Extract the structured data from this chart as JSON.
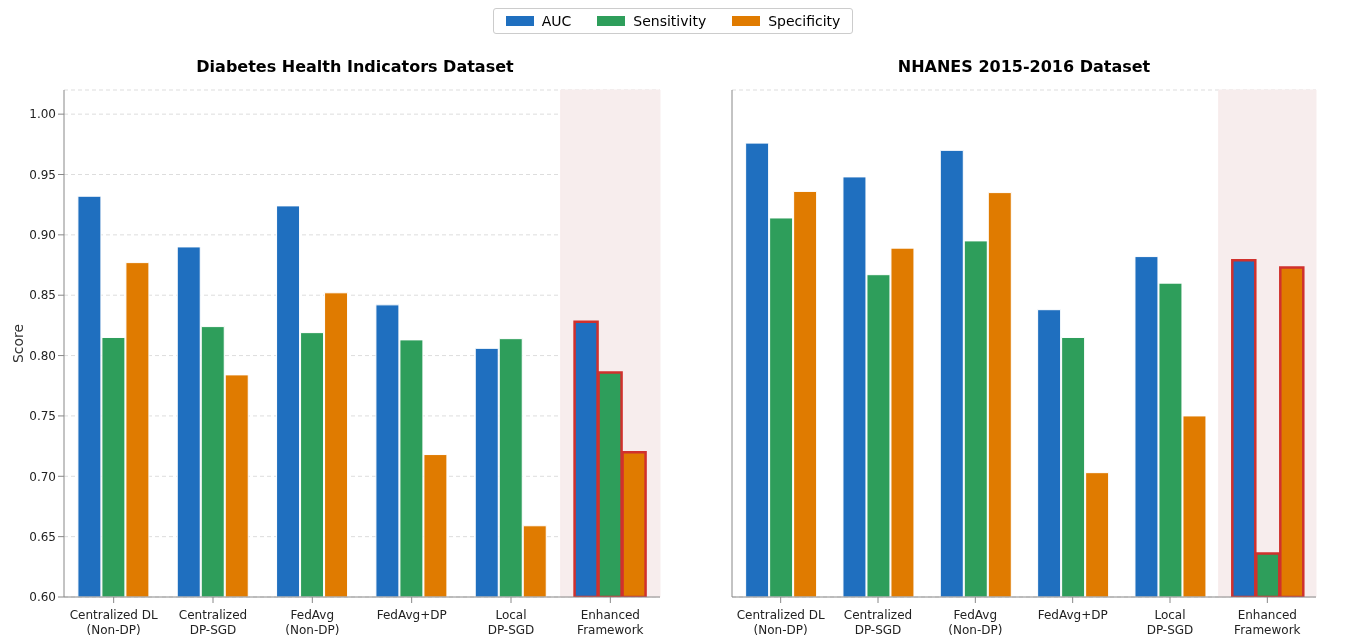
{
  "chart_data": [
    {
      "type": "bar",
      "title": "Diabetes Health Indicators Dataset",
      "ylabel": "Score",
      "categories": [
        "Centralized DL\n(Non-DP)",
        "Centralized\nDP-SGD",
        "FedAvg\n(Non-DP)",
        "FedAvg+DP",
        "Local\nDP-SGD",
        "Enhanced\nFramework"
      ],
      "series": [
        {
          "name": "AUC",
          "color": "#1f6fbf",
          "values": [
            0.932,
            0.89,
            0.924,
            0.842,
            0.806,
            0.828
          ]
        },
        {
          "name": "Sensitivity",
          "color": "#2e9e5b",
          "values": [
            0.815,
            0.824,
            0.819,
            0.813,
            0.814,
            0.786
          ]
        },
        {
          "name": "Specificity",
          "color": "#e07b00",
          "values": [
            0.877,
            0.784,
            0.852,
            0.718,
            0.659,
            0.72
          ]
        }
      ],
      "ylim": [
        0.6,
        1.02
      ],
      "yticks": [
        {
          "value": 0.6,
          "label": "0.60"
        },
        {
          "value": 0.65,
          "label": "0.65"
        },
        {
          "value": 0.7,
          "label": "0.70"
        },
        {
          "value": 0.75,
          "label": "0.75"
        },
        {
          "value": 0.8,
          "label": "0.80"
        },
        {
          "value": 0.85,
          "label": "0.85"
        },
        {
          "value": 0.9,
          "label": "0.90"
        },
        {
          "value": 0.95,
          "label": "0.95"
        },
        {
          "value": 1.0,
          "label": "1.00"
        }
      ],
      "grid": "y",
      "legend": "top",
      "bands": [
        {
          "axis": "x",
          "from": "Enhanced\nFramework",
          "to": "Enhanced\nFramework",
          "color": "#f7eded"
        }
      ]
    },
    {
      "type": "bar",
      "title": "NHANES 2015-2016 Dataset",
      "categories": [
        "Centralized DL\n(Non-DP)",
        "Centralized\nDP-SGD",
        "FedAvg\n(Non-DP)",
        "FedAvg+DP",
        "Local\nDP-SGD",
        "Enhanced\nFramework"
      ],
      "series": [
        {
          "color": "#1f6fbf",
          "values": [
            0.976,
            0.948,
            0.97,
            0.838,
            0.882,
            0.879
          ]
        },
        {
          "color": "#2e9e5b",
          "values": [
            0.914,
            0.867,
            0.895,
            0.815,
            0.86,
            0.636
          ]
        },
        {
          "color": "#e07b00",
          "values": [
            0.936,
            0.889,
            0.935,
            0.703,
            0.75,
            0.873
          ]
        }
      ],
      "ylim": [
        0.6,
        1.02
      ],
      "yticks": [
        {
          "value": 0.6,
          "label": null
        },
        {
          "value": 0.65,
          "label": null
        },
        {
          "value": 0.7,
          "label": null
        },
        {
          "value": 0.75,
          "label": null
        },
        {
          "value": 0.8,
          "label": null
        },
        {
          "value": 0.85,
          "label": null
        },
        {
          "value": 0.9,
          "label": null
        },
        {
          "value": 0.95,
          "label": null
        },
        {
          "value": 1.0,
          "label": null
        }
      ],
      "grid": "y",
      "tick_labels": "x",
      "bands": [
        {
          "axis": "x",
          "from": "Enhanced\nFramework",
          "to": "Enhanced\nFramework",
          "color": "#f7eded"
        }
      ]
    }
  ]
}
